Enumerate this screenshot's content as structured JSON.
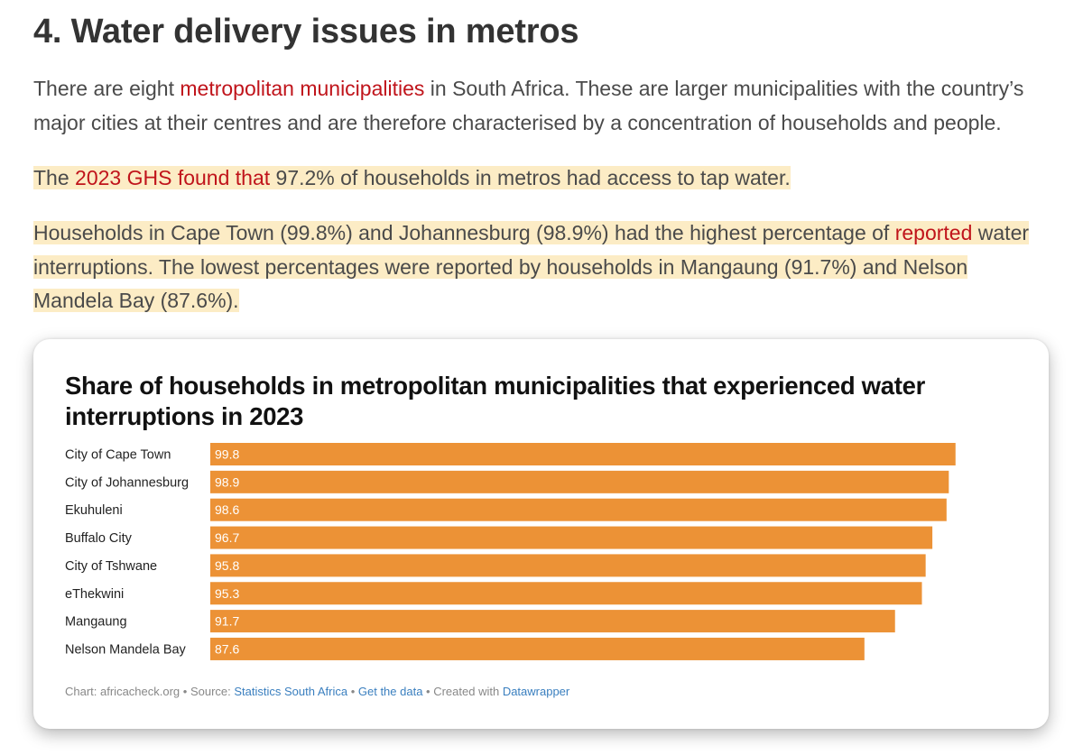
{
  "article": {
    "heading": "4. Water delivery issues in metros",
    "p1": {
      "pre": "There are eight ",
      "link": "metropolitan municipalities",
      "post": " in South Africa. These are larger municipalities with the country’s major cities at their centres and are therefore characterised by a concentration of households and people."
    },
    "p2": {
      "pre": "The ",
      "link": "2023 GHS found that",
      "post": " 97.2% of households in metros had access to tap water."
    },
    "p3": {
      "pre": "Households in Cape Town (99.8%) and Johannesburg (98.9%) had the highest percentage of ",
      "link": "reported",
      "post": " water interruptions. The lowest percentages were reported by households in Mangaung (91.7%) and Nelson Mandela Bay (87.6%)."
    }
  },
  "colors": {
    "bar": "#ec9236",
    "link": "#c0141b",
    "highlight": "#fcecc5",
    "footer_link": "#3a7fbf"
  },
  "chart_data": {
    "type": "bar",
    "orientation": "horizontal",
    "title": "Share of households in metropolitan municipalities that experienced water interruptions in 2023",
    "categories": [
      "City of Cape Town",
      "City of Johannesburg",
      "Ekuhuleni",
      "Buffalo City",
      "City of Tshwane",
      "eThekwini",
      "Mangaung",
      "Nelson Mandela Bay"
    ],
    "values": [
      99.8,
      98.9,
      98.6,
      96.7,
      95.8,
      95.3,
      91.7,
      87.6
    ],
    "xlim": [
      0,
      100
    ],
    "xlabel": "",
    "ylabel": "",
    "grid": false,
    "data_labels": "inside-left"
  },
  "footer": {
    "prefix": "Chart: africacheck.org • Source: ",
    "source_link": "Statistics South Africa",
    "sep1": " • ",
    "data_link": "Get the data",
    "sep2": " • Created with ",
    "tool_link": "Datawrapper"
  }
}
